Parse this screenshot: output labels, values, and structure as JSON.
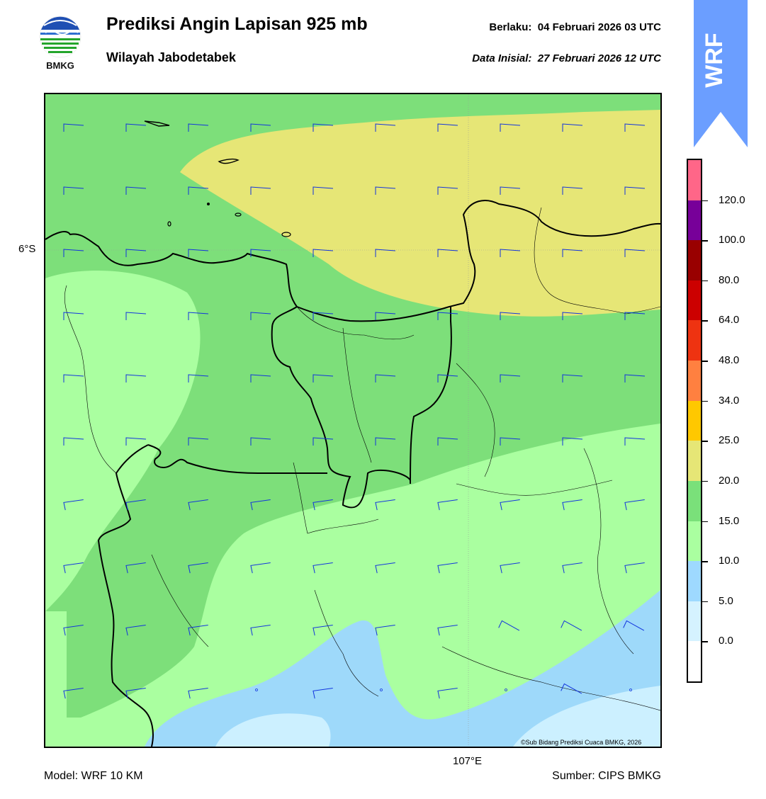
{
  "header": {
    "title": "Prediksi Angin Lapisan 925 mb",
    "subtitle": "Wilayah Jabodetabek",
    "valid_label": "Berlaku:",
    "valid_value": "04 Februari 2026 03 UTC",
    "init_label": "Data Inisial:",
    "init_value": "27 Februari 2026 12 UTC"
  },
  "logo": {
    "text": "BMKG",
    "icon": "bmkg-logo-icon"
  },
  "badge": {
    "text": "WRF",
    "color": "#6b9eff"
  },
  "map": {
    "lat_label": "6°S",
    "lon_label": "107°E",
    "copyright": "©Sub Bidang Prediksi Cuaca BMKG, 2026"
  },
  "footer": {
    "model": "Model: WRF 10 KM",
    "source": "Sumber: CIPS BMKG"
  },
  "colorbar": {
    "labels": [
      "0.0",
      "5.0",
      "10.0",
      "15.0",
      "20.0",
      "25.0",
      "34.0",
      "48.0",
      "64.0",
      "80.0",
      "100.0",
      "120.0"
    ],
    "colors": [
      "#ffffff",
      "#d5f2ff",
      "#9ed9ff",
      "#aaffa0",
      "#7ae07a",
      "#e6e676",
      "#ffc800",
      "#ff8040",
      "#ee3311",
      "#cc0000",
      "#990000",
      "#770099",
      "#ff6688"
    ]
  },
  "colors": {
    "wind_barb": "#1133dd",
    "band_light_blue_pale": "#ccf0ff",
    "band_light_blue": "#9ed9fa",
    "band_light_green": "#aaffa0",
    "band_green": "#7ddf7a",
    "band_yellow": "#e6e676"
  }
}
